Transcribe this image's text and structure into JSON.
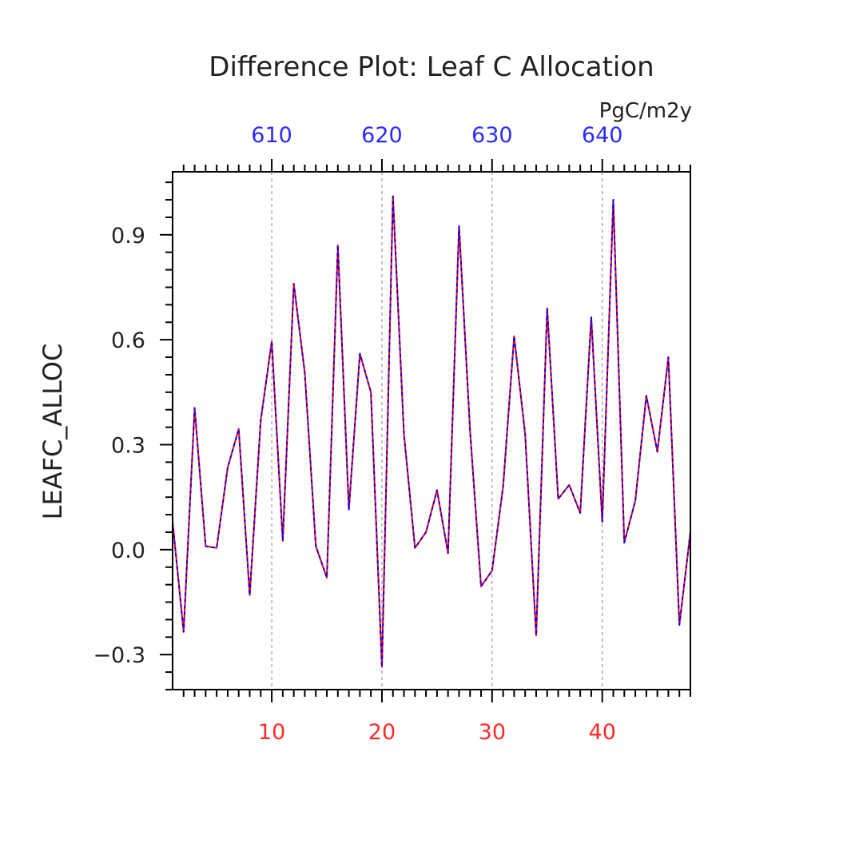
{
  "chart_data": {
    "type": "line",
    "title": "Difference Plot: Leaf C Allocation",
    "units": "PgC/m2y",
    "ylabel": "LEAFC_ALLOC",
    "xlim": [
      1,
      48
    ],
    "ylim": [
      -0.4,
      1.08
    ],
    "grid": {
      "x": true,
      "y": false
    },
    "bottom_axis": {
      "ticks": [
        10,
        20,
        30,
        40
      ],
      "tick_labels": [
        "10",
        "20",
        "30",
        "40"
      ],
      "color": "#ff2b2b"
    },
    "top_axis": {
      "ticks": [
        10,
        20,
        30,
        40
      ],
      "tick_labels": [
        "610",
        "620",
        "630",
        "640"
      ],
      "color": "#2b2bff"
    },
    "left_axis": {
      "ticks": [
        -0.3,
        0.0,
        0.3,
        0.6,
        0.9
      ],
      "tick_labels": [
        "−0.3",
        "0.0",
        "0.3",
        "0.6",
        "0.9"
      ]
    },
    "x": [
      1,
      2,
      3,
      4,
      5,
      6,
      7,
      8,
      9,
      10,
      11,
      12,
      13,
      14,
      15,
      16,
      17,
      18,
      19,
      20,
      21,
      22,
      23,
      24,
      25,
      26,
      27,
      28,
      29,
      30,
      31,
      32,
      33,
      34,
      35,
      36,
      37,
      38,
      39,
      40,
      41,
      42,
      43,
      44,
      45,
      46,
      47,
      48
    ],
    "series": [
      {
        "color": "#ff0000",
        "values": [
          0.08,
          -0.235,
          0.405,
          0.01,
          0.005,
          0.235,
          0.345,
          -0.13,
          0.37,
          0.595,
          0.025,
          0.76,
          0.505,
          0.01,
          -0.08,
          0.87,
          0.115,
          0.56,
          0.45,
          -0.335,
          1.01,
          0.33,
          0.005,
          0.05,
          0.17,
          -0.01,
          0.925,
          0.34,
          -0.105,
          -0.06,
          0.18,
          0.61,
          0.33,
          -0.245,
          0.69,
          0.145,
          0.185,
          0.105,
          0.665,
          0.08,
          1.0,
          0.02,
          0.14,
          0.44,
          0.28,
          0.55,
          -0.215,
          0.05
        ]
      },
      {
        "color": "#0000ff",
        "values": [
          0.08,
          -0.235,
          0.405,
          0.01,
          0.005,
          0.235,
          0.345,
          -0.13,
          0.37,
          0.595,
          0.025,
          0.76,
          0.505,
          0.01,
          -0.08,
          0.87,
          0.115,
          0.56,
          0.45,
          -0.335,
          1.01,
          0.33,
          0.005,
          0.05,
          0.17,
          -0.01,
          0.925,
          0.34,
          -0.105,
          -0.06,
          0.18,
          0.61,
          0.33,
          -0.245,
          0.69,
          0.145,
          0.185,
          0.105,
          0.665,
          0.08,
          1.0,
          0.02,
          0.14,
          0.44,
          0.28,
          0.55,
          -0.215,
          0.05
        ]
      }
    ]
  }
}
